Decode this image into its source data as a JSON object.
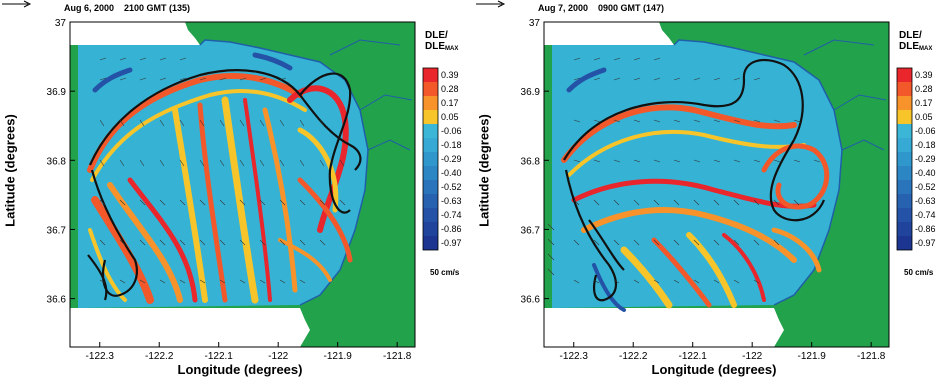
{
  "colors": {
    "land": "#22a24a",
    "water": "#36b3d4",
    "coast": "#1f5fa8",
    "ridge": "#111111"
  },
  "colorbar": {
    "title_top": "DLE/",
    "title_main": "DLE",
    "title_sub": "MAX",
    "ticks": [
      "0.39",
      "0.28",
      "0.17",
      "0.05",
      "-0.06",
      "-0.18",
      "-0.29",
      "-0.40",
      "-0.52",
      "-0.63",
      "-0.74",
      "-0.86",
      "-0.97"
    ],
    "colors": [
      "#e8262c",
      "#f2582a",
      "#f7932a",
      "#f7c52a",
      "#3bb6d6",
      "#36a9d4",
      "#2f97cc",
      "#2c86c4",
      "#2a74bb",
      "#2762b1",
      "#2452a6",
      "#20439b",
      "#1b3590"
    ]
  },
  "scale_label": "50 cm/s",
  "chart_data": [
    {
      "type": "heatmap",
      "title": "Aug 6, 2000    2100 GMT (135)",
      "xlabel": "Longitude (degrees)",
      "ylabel": "Latitude (degrees)",
      "xlim": [
        -122.35,
        -121.77
      ],
      "ylim": [
        36.53,
        37.0
      ],
      "xticks": [
        -122.3,
        -122.2,
        -122.1,
        -122.0,
        -121.9,
        -121.8
      ],
      "xtick_labels": [
        "-122.3",
        "-122.2",
        "-122.1",
        "-122",
        "-121.9",
        "-121.8"
      ],
      "yticks": [
        36.6,
        36.7,
        36.8,
        36.9,
        37.0
      ],
      "ytick_labels": [
        "36.6",
        "36.7",
        "36.8",
        "36.9",
        "37"
      ]
    },
    {
      "type": "heatmap",
      "title": "Aug 7, 2000    0900 GMT (147)",
      "xlabel": "Longitude (degrees)",
      "ylabel": "Latitude (degrees)",
      "xlim": [
        -122.35,
        -121.77
      ],
      "ylim": [
        36.53,
        37.0
      ],
      "xticks": [
        -122.3,
        -122.2,
        -122.1,
        -122.0,
        -121.9,
        -121.8
      ],
      "xtick_labels": [
        "-122.3",
        "-122.2",
        "-122.1",
        "-122",
        "-121.9",
        "-121.8"
      ],
      "yticks": [
        36.6,
        36.7,
        36.8,
        36.9,
        37.0
      ],
      "ytick_labels": [
        "36.6",
        "36.7",
        "36.8",
        "36.9",
        "37"
      ]
    }
  ]
}
